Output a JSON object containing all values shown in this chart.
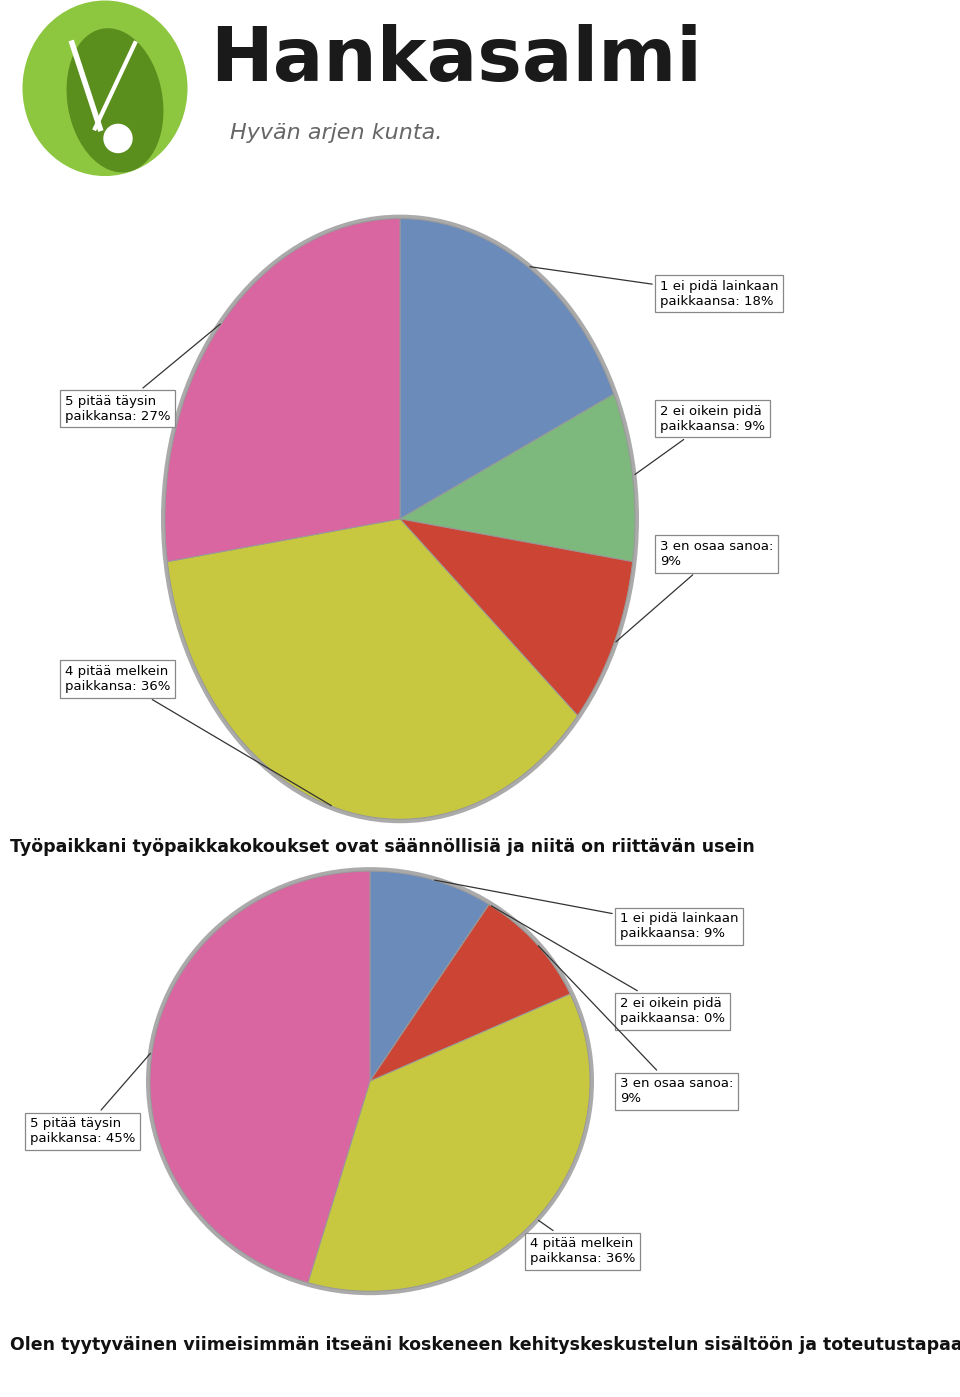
{
  "bg_color": "#ffffff",
  "logo_text": "Hankasalmi",
  "logo_subtitle": "Hyvän arjen kunta.",
  "pie1": {
    "values": [
      18,
      9,
      9,
      36,
      27
    ],
    "colors": [
      "#6b8cba",
      "#7db87d",
      "#cc4433",
      "#c8c840",
      "#d966a0"
    ],
    "labels": [
      "1 ei pidä lainkaan\npaikkaansa: 18%",
      "2 ei oikein pidä\npaikkaansa: 9%",
      "3 en osaa sanoa:\n9%",
      "4 pitää melkein\npaikkansa: 36%",
      "5 pitää täysin\npaikkansa: 27%"
    ]
  },
  "middle_text": "Työpaikkani työpaikkakokoukset ovat säännöllisiä ja niitä on riittävän usein",
  "pie2": {
    "values": [
      9,
      0.01,
      9,
      36,
      45
    ],
    "colors": [
      "#6b8cba",
      "#cc4433",
      "#cc4433",
      "#c8c840",
      "#d966a0"
    ],
    "labels": [
      "1 ei pidä lainkaan\npaikkaansa: 9%",
      "2 ei oikein pidä\npaikkaansa: 0%",
      "3 en osaa sanoa:\n9%",
      "4 pitää melkein\npaikkansa: 36%",
      "5 pitää täysin\npaikkansa: 45%"
    ]
  },
  "bottom_text": "Olen tyytyväinen viimeisimmän itseäni koskeneen kehityskeskustelun sisältöön ja toteutustapaan"
}
